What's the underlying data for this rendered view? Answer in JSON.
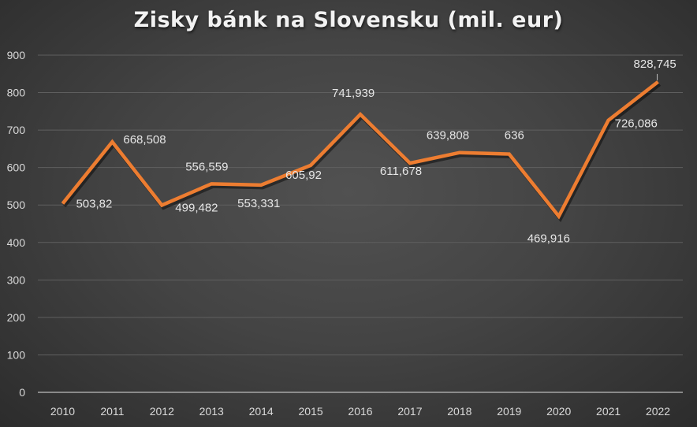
{
  "title": "Zisky bánk na Slovensku (mil. eur)",
  "chart_data": {
    "type": "line",
    "title": "Zisky bánk na Slovensku (mil. eur)",
    "xlabel": "",
    "ylabel": "",
    "categories": [
      "2010",
      "2011",
      "2012",
      "2013",
      "2014",
      "2015",
      "2016",
      "2017",
      "2018",
      "2019",
      "2020",
      "2021",
      "2022"
    ],
    "series": [
      {
        "name": "Zisky bánk",
        "color": "#ed7d31",
        "values": [
          503.82,
          668.508,
          499.482,
          556.559,
          553.331,
          605.92,
          741.939,
          611.678,
          639.808,
          636,
          469.916,
          726.086,
          828.745
        ],
        "labels": [
          "503,82",
          "668,508",
          "499,482",
          "556,559",
          "553,331",
          "605,92",
          "741,939",
          "611,678",
          "639,808",
          "636",
          "469,916",
          "726,086",
          "828,745"
        ]
      }
    ],
    "ylim": [
      0,
      900
    ],
    "yticks": [
      0,
      100,
      200,
      300,
      400,
      500,
      600,
      700,
      800,
      900
    ],
    "grid": true,
    "legend": "none"
  },
  "colors": {
    "line": "#ed7d31",
    "gridline": "#5f5f5f",
    "axis": "#a6a6a6",
    "text": "#d9d9d9"
  }
}
